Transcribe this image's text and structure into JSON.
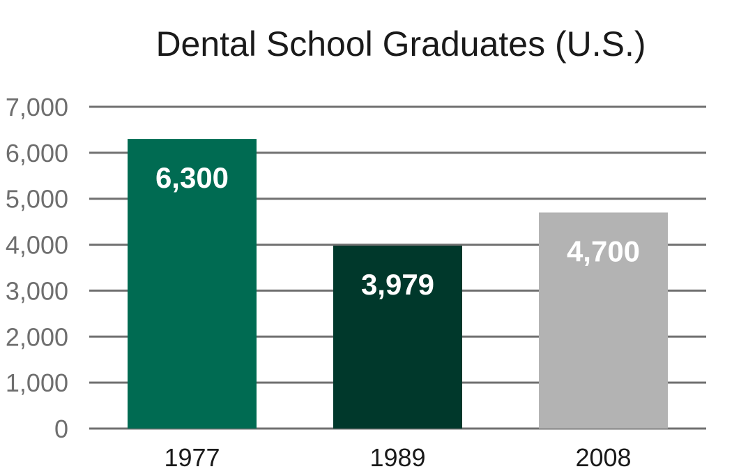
{
  "chart_data": {
    "type": "bar",
    "title": "Dental School Graduates (U.S.)",
    "xlabel": "",
    "ylabel": "",
    "categories": [
      "1977",
      "1989",
      "2008"
    ],
    "values": [
      6300,
      3979,
      4700
    ],
    "data_labels": [
      "6,300",
      "3,979",
      "4,700"
    ],
    "bar_colors": [
      "#006b52",
      "#00382b",
      "#b3b3b3"
    ],
    "ylim": [
      0,
      7000
    ],
    "yticks": [
      0,
      1000,
      2000,
      3000,
      4000,
      5000,
      6000,
      7000
    ],
    "ytick_labels": [
      "0",
      "1,000",
      "2,000",
      "3,000",
      "4,000",
      "5,000",
      "6,000",
      "7,000"
    ],
    "grid": true,
    "legend": false
  }
}
